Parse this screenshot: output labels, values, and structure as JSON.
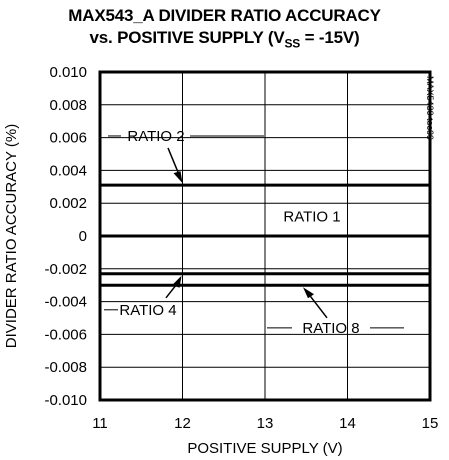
{
  "chart_data": {
    "type": "line",
    "title_line1": "MAX543_A DIVIDER RATIO ACCURACY",
    "title_line2_prefix": "vs. POSITIVE SUPPLY (V",
    "title_line2_sub": "SS",
    "title_line2_suffix": " = -15V)",
    "xlabel": "POSITIVE SUPPLY (V)",
    "ylabel": "DIVIDER RATIO ACCURACY (%)",
    "watermark": "MAX5430 toc09",
    "xlim": [
      11,
      15
    ],
    "ylim": [
      -0.01,
      0.01
    ],
    "xticks": [
      "11",
      "12",
      "13",
      "14",
      "15"
    ],
    "yticks": [
      "0.010",
      "0.008",
      "0.006",
      "0.004",
      "0.002",
      "0",
      "-0.002",
      "-0.004",
      "-0.006",
      "-0.008",
      "-0.010"
    ],
    "grid": true,
    "series": [
      {
        "name": "RATIO 1",
        "x": [
          11,
          15
        ],
        "y": [
          0.0,
          0.0
        ]
      },
      {
        "name": "RATIO 2",
        "x": [
          11,
          15
        ],
        "y": [
          0.0031,
          0.0031
        ]
      },
      {
        "name": "RATIO 4",
        "x": [
          11,
          15
        ],
        "y": [
          -0.0023,
          -0.0023
        ]
      },
      {
        "name": "RATIO 8",
        "x": [
          11,
          15
        ],
        "y": [
          -0.003,
          -0.003
        ]
      }
    ]
  }
}
